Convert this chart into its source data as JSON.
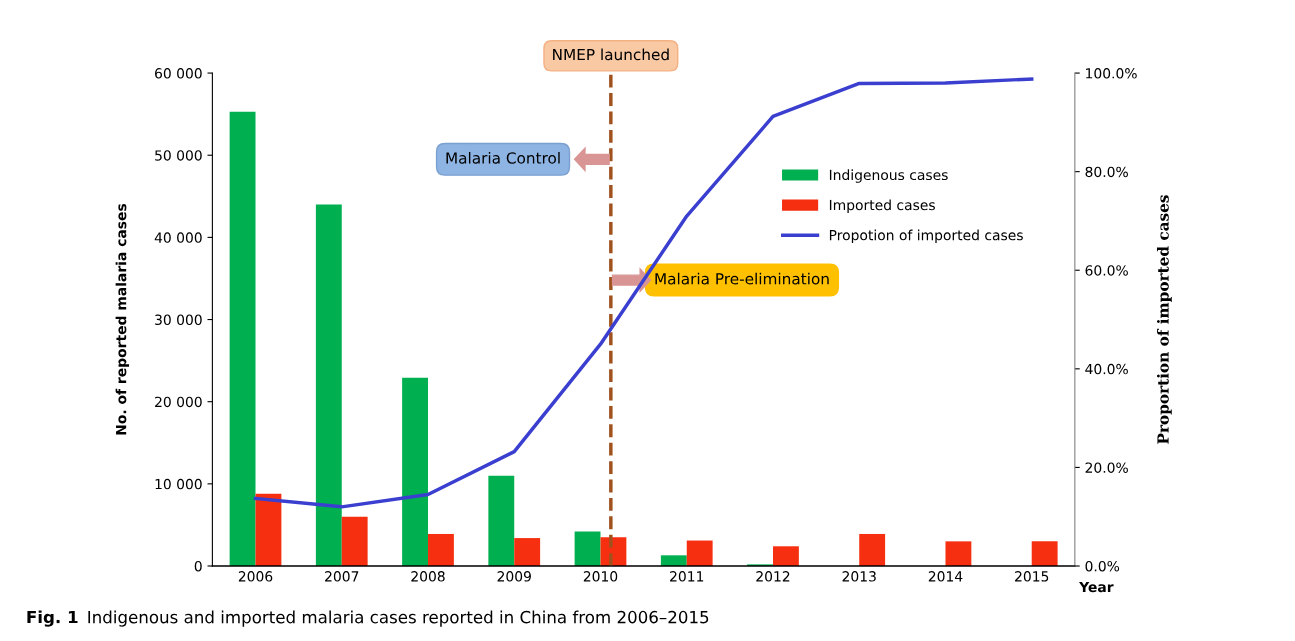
{
  "chart_data": {
    "type": "bar",
    "xlabel": "Year",
    "ylabel": "No. of reported malaria cases",
    "y2label": "Proportion of imported cases",
    "categories": [
      "2006",
      "2007",
      "2008",
      "2009",
      "2010",
      "2011",
      "2012",
      "2013",
      "2014",
      "2015"
    ],
    "series": [
      {
        "name": "Indigenous cases",
        "color": "#00b050",
        "values": [
          55300,
          44000,
          22900,
          11000,
          4200,
          1300,
          200,
          0,
          0,
          0
        ]
      },
      {
        "name": "Imported cases",
        "color": "#f52f0f",
        "values": [
          8800,
          6000,
          3900,
          3400,
          3500,
          3100,
          2400,
          3900,
          3000,
          3000
        ]
      },
      {
        "name": "Propotion of imported cases",
        "type": "line",
        "axis": "y2",
        "color": "#3b3fcf",
        "values": [
          13.7,
          12.0,
          14.5,
          23.2,
          45.0,
          71.0,
          91.2,
          97.9,
          98.0,
          98.8
        ]
      }
    ],
    "ylim": [
      0,
      60000
    ],
    "yticks": [
      0,
      {
        "value": 10000,
        "label": "10 000"
      },
      {
        "value": 20000,
        "label": "20 000"
      },
      {
        "value": 30000,
        "label": "30 000"
      },
      {
        "value": 40000,
        "label": "40 000"
      },
      {
        "value": 50000,
        "label": "50 000"
      },
      {
        "value": 60000,
        "label": "60 000"
      }
    ],
    "y2lim": [
      0,
      100
    ],
    "y2ticks": [
      {
        "value": 0,
        "label": "0.0%"
      },
      {
        "value": 20,
        "label": "20.0%"
      },
      {
        "value": 40,
        "label": "40.0%"
      },
      {
        "value": 60,
        "label": "60.0%"
      },
      {
        "value": 80,
        "label": "80.0%"
      },
      {
        "value": 100,
        "label": "100.0%"
      }
    ],
    "ref_lines": [
      {
        "axis": "x",
        "value": "2010",
        "label": "NMEP launched",
        "color": "#a0521e",
        "line_style": "dashed"
      }
    ],
    "annotations": [
      "Malaria Control",
      "Malaria Pre-elimination",
      "Fig. 1",
      "Indigenous and imported malaria cases reported in China from 2006–2015"
    ],
    "legend": "right",
    "grid": false,
    "marker": "none",
    "line_style": "solid"
  }
}
